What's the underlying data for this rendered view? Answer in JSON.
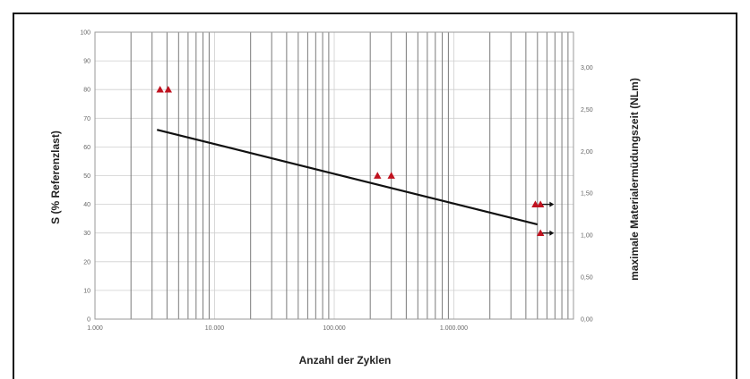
{
  "chart_data": {
    "type": "scatter",
    "xlabel": "Anzahl der Zyklen",
    "ylabel_left": "S (% Referenzlast)",
    "ylabel_right": "maximale Materialermüdungszeit (NLm)",
    "x_scale": "log",
    "xlim": [
      1000,
      10000000
    ],
    "ylim_left": [
      0,
      100
    ],
    "ylim_right": [
      0,
      3.42
    ],
    "grid": true,
    "x_tick_labels": [
      "1.000",
      "10.000",
      "100.000",
      "1.000.000"
    ],
    "x_tick_values": [
      1000,
      10000,
      100000,
      1000000
    ],
    "y_left_ticks": [
      0,
      10,
      20,
      30,
      40,
      50,
      60,
      70,
      80,
      90,
      100
    ],
    "y_right_tick_labels": [
      "0,00",
      "0,50",
      "1,00",
      "1,50",
      "2,00",
      "2,50",
      "3,00"
    ],
    "y_right_tick_values": [
      0,
      0.5,
      1.0,
      1.5,
      2.0,
      2.5,
      3.0
    ],
    "colors": {
      "marker": "#c0121f",
      "line": "#111111",
      "grid_major": "#7a7a7a",
      "grid_minor": "#cfcfcf"
    },
    "series": [
      {
        "type": "scatter",
        "marker": "triangle",
        "points": [
          {
            "x": 3500,
            "y": 80
          },
          {
            "x": 4100,
            "y": 80
          },
          {
            "x": 230000,
            "y": 50
          },
          {
            "x": 300000,
            "y": 50
          },
          {
            "x": 4800000,
            "y": 40
          },
          {
            "x": 5300000,
            "y": 40
          },
          {
            "x": 5300000,
            "y": 30
          }
        ]
      },
      {
        "type": "line",
        "points": [
          {
            "x": 3300,
            "y": 66
          },
          {
            "x": 5000000,
            "y": 33
          }
        ]
      }
    ],
    "runouts": [
      {
        "x": 5500000,
        "y": 40
      },
      {
        "x": 5500000,
        "y": 30
      }
    ]
  }
}
